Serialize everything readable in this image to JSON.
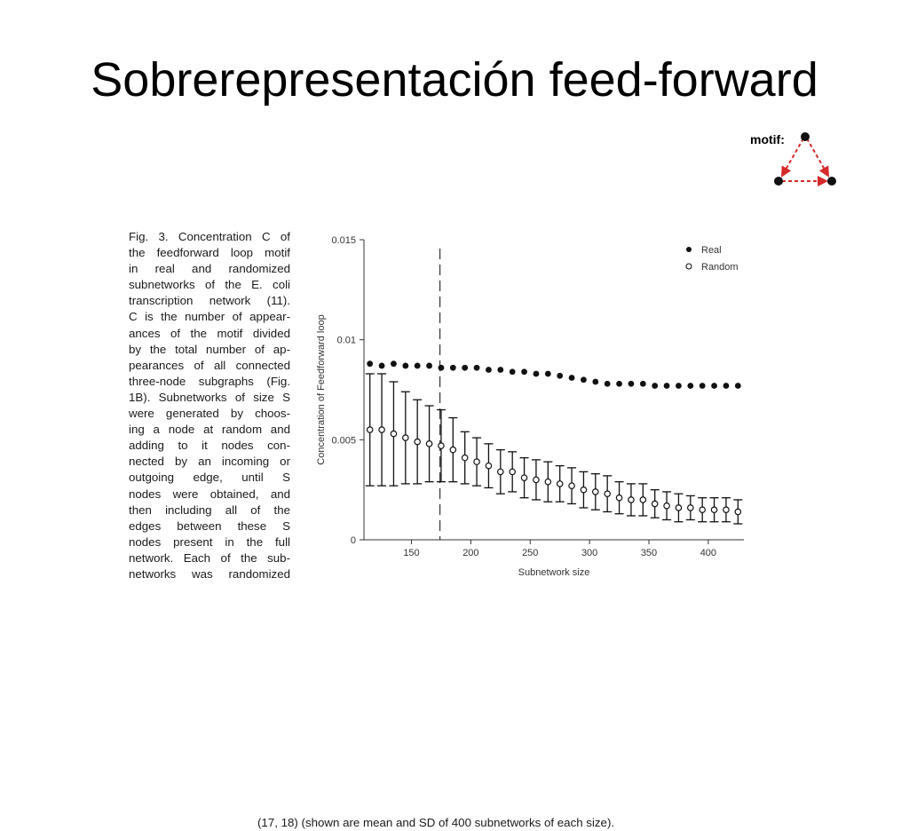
{
  "slide": {
    "title": "Sobrerepresentación feed-forward"
  },
  "motif": {
    "label": "motif:"
  },
  "caption": {
    "lines": [
      "Fig. 3. Concentration C of",
      "the feedforward loop motif",
      "in real and randomized",
      "subnetworks of the E. coli",
      "transcription network (11).",
      "C is the number of appear-",
      "ances of the motif divided",
      "by the total number of ap-",
      "pearances of all connected",
      "three-node subgraphs (Fig.",
      "1B). Subnetworks of size S",
      "were generated by choos-",
      "ing a node at random and",
      "adding to it nodes con-",
      "nected by an incoming or",
      "outgoing edge, until S",
      "nodes were obtained, and",
      "then including all of the",
      "edges between these S",
      "nodes present in the full",
      "network. Each of the sub-",
      "networks was randomized"
    ],
    "last_line": "(17, 18) (shown are mean and SD of 400 subnetworks of each size)."
  },
  "chart_data": {
    "type": "scatter",
    "xlabel": "Subnetwork size",
    "ylabel": "Concentration of Feedforward loop",
    "xlim": [
      110,
      430
    ],
    "ylim": [
      0,
      0.015
    ],
    "xticks": [
      "150",
      "200",
      "250",
      "300",
      "350",
      "400"
    ],
    "yticks": [
      "0",
      "0.005",
      "0.01",
      "0.015"
    ],
    "legend_position": "top-right",
    "vline_x": 174,
    "x": [
      115,
      125,
      135,
      145,
      155,
      165,
      175,
      185,
      195,
      205,
      215,
      225,
      235,
      245,
      255,
      265,
      275,
      285,
      295,
      305,
      315,
      325,
      335,
      345,
      355,
      365,
      375,
      385,
      395,
      405,
      415,
      425
    ],
    "series": [
      {
        "name": "Real",
        "marker": "filled",
        "values": [
          0.0088,
          0.0087,
          0.0088,
          0.0087,
          0.0087,
          0.0087,
          0.0086,
          0.0086,
          0.0086,
          0.0086,
          0.0085,
          0.0085,
          0.0084,
          0.0084,
          0.0083,
          0.0083,
          0.0082,
          0.0081,
          0.008,
          0.0079,
          0.0078,
          0.0078,
          0.0078,
          0.0078,
          0.0077,
          0.0077,
          0.0077,
          0.0077,
          0.0077,
          0.0077,
          0.0077,
          0.0077
        ]
      },
      {
        "name": "Random",
        "marker": "hollow",
        "values": [
          0.0055,
          0.0055,
          0.0053,
          0.0051,
          0.0049,
          0.0048,
          0.0047,
          0.0045,
          0.0041,
          0.0039,
          0.0037,
          0.0034,
          0.0034,
          0.0031,
          0.003,
          0.0029,
          0.0028,
          0.0027,
          0.0025,
          0.0024,
          0.0023,
          0.0021,
          0.002,
          0.002,
          0.0018,
          0.0017,
          0.0016,
          0.0016,
          0.0015,
          0.0015,
          0.0015,
          0.0014
        ],
        "sd": [
          0.0028,
          0.0028,
          0.0026,
          0.0023,
          0.0021,
          0.0019,
          0.0018,
          0.0016,
          0.0013,
          0.0012,
          0.0011,
          0.0011,
          0.001,
          0.001,
          0.001,
          0.001,
          0.0009,
          0.0009,
          0.0009,
          0.0009,
          0.0009,
          0.0008,
          0.0008,
          0.0008,
          0.0007,
          0.0007,
          0.0007,
          0.0006,
          0.0006,
          0.0006,
          0.0006,
          0.0006
        ]
      }
    ]
  }
}
